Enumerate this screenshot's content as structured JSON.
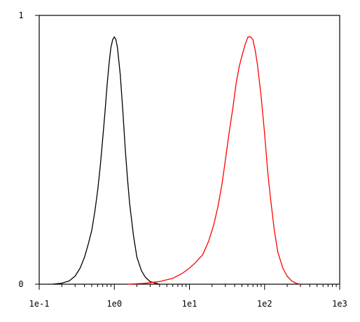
{
  "chart_data": {
    "type": "line",
    "title": "",
    "xlabel": "",
    "ylabel": "",
    "x_scale": "log",
    "xlim": [
      0.1,
      1000
    ],
    "ylim": [
      0,
      1
    ],
    "x_ticks": [
      "1e-1",
      "1e0",
      "1e1",
      "1e2",
      "1e3"
    ],
    "y_ticks": [
      "0",
      "1"
    ],
    "grid": false,
    "legend": "none",
    "series": [
      {
        "color": "#000000",
        "points": [
          [
            0.15,
            0.0
          ],
          [
            0.2,
            0.004
          ],
          [
            0.25,
            0.012
          ],
          [
            0.3,
            0.03
          ],
          [
            0.35,
            0.06
          ],
          [
            0.4,
            0.1
          ],
          [
            0.45,
            0.15
          ],
          [
            0.5,
            0.2
          ],
          [
            0.55,
            0.27
          ],
          [
            0.6,
            0.35
          ],
          [
            0.65,
            0.44
          ],
          [
            0.7,
            0.54
          ],
          [
            0.75,
            0.64
          ],
          [
            0.8,
            0.74
          ],
          [
            0.85,
            0.82
          ],
          [
            0.9,
            0.88
          ],
          [
            0.95,
            0.91
          ],
          [
            1.0,
            0.92
          ],
          [
            1.05,
            0.91
          ],
          [
            1.1,
            0.88
          ],
          [
            1.2,
            0.78
          ],
          [
            1.3,
            0.64
          ],
          [
            1.4,
            0.5
          ],
          [
            1.5,
            0.39
          ],
          [
            1.6,
            0.3
          ],
          [
            1.8,
            0.18
          ],
          [
            2.0,
            0.1
          ],
          [
            2.3,
            0.05
          ],
          [
            2.6,
            0.025
          ],
          [
            3.0,
            0.01
          ],
          [
            3.5,
            0.004
          ],
          [
            4.0,
            0.0
          ]
        ]
      },
      {
        "color": "#ff0000",
        "points": [
          [
            1.5,
            0.0
          ],
          [
            2.5,
            0.003
          ],
          [
            4.0,
            0.01
          ],
          [
            6.0,
            0.022
          ],
          [
            8.0,
            0.04
          ],
          [
            10.0,
            0.06
          ],
          [
            12.0,
            0.08
          ],
          [
            15.0,
            0.11
          ],
          [
            18.0,
            0.16
          ],
          [
            21.0,
            0.22
          ],
          [
            24.0,
            0.29
          ],
          [
            27.0,
            0.37
          ],
          [
            30.0,
            0.46
          ],
          [
            34.0,
            0.57
          ],
          [
            38.0,
            0.66
          ],
          [
            42.0,
            0.75
          ],
          [
            46.0,
            0.81
          ],
          [
            50.0,
            0.85
          ],
          [
            55.0,
            0.89
          ],
          [
            60.0,
            0.92
          ],
          [
            65.0,
            0.92
          ],
          [
            70.0,
            0.91
          ],
          [
            75.0,
            0.87
          ],
          [
            80.0,
            0.82
          ],
          [
            90.0,
            0.7
          ],
          [
            100.0,
            0.56
          ],
          [
            110.0,
            0.42
          ],
          [
            120.0,
            0.32
          ],
          [
            135.0,
            0.2
          ],
          [
            150.0,
            0.12
          ],
          [
            175.0,
            0.06
          ],
          [
            200.0,
            0.03
          ],
          [
            230.0,
            0.012
          ],
          [
            260.0,
            0.004
          ],
          [
            300.0,
            0.0
          ]
        ]
      }
    ]
  }
}
